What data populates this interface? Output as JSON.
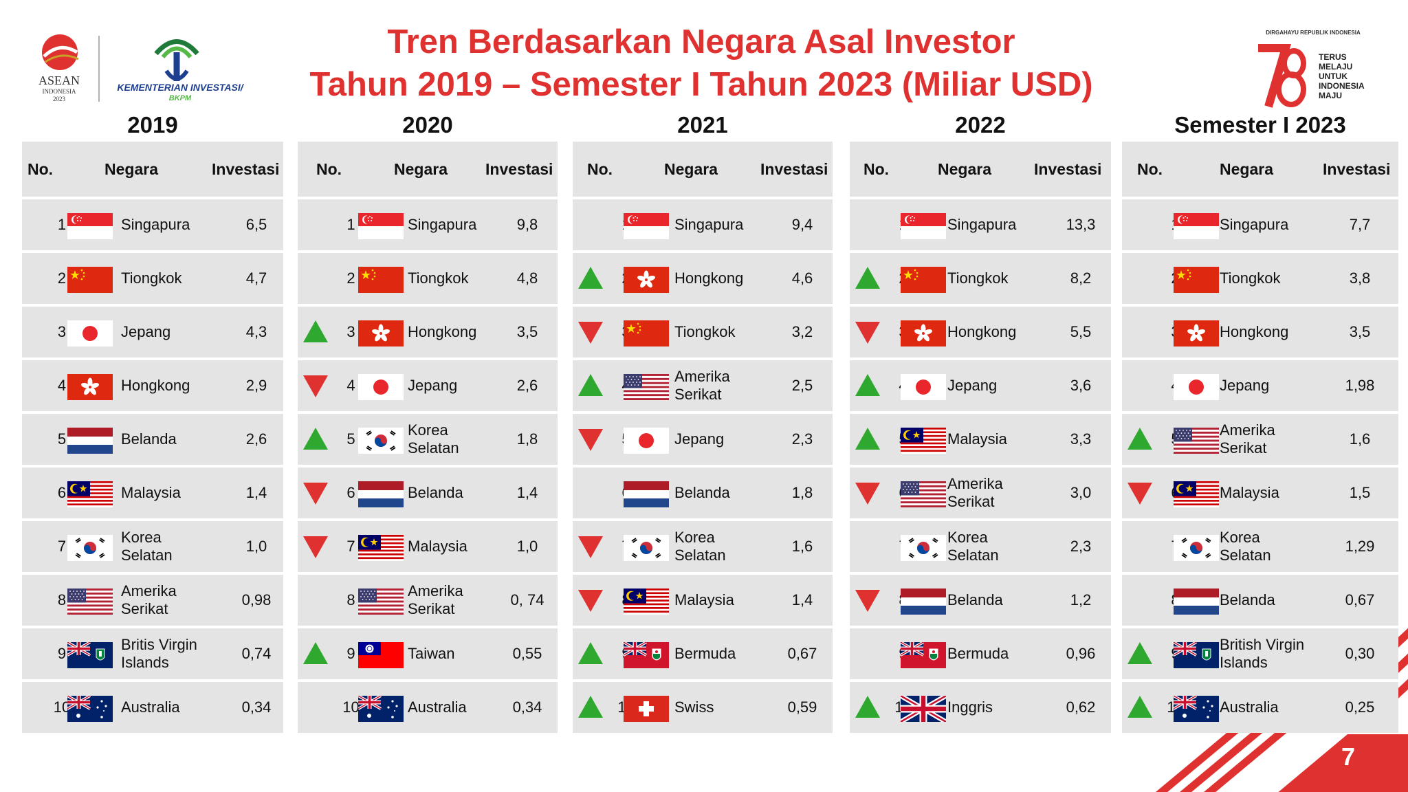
{
  "title": {
    "line1": "Tren Berdasarkan Negara Asal Investor",
    "line2": "Tahun 2019 – Semester I Tahun 2023 (Miliar USD)"
  },
  "logos": {
    "asean_line1": "ASEAN",
    "asean_line2": "INDONESIA",
    "asean_line3": "2023",
    "ministry_line1": "KEMENTERIAN INVESTASI/",
    "ministry_line2": "BKPM",
    "hut_top": "DIRGAHAYU REPUBLIK INDONESIA",
    "hut_line1": "TERUS",
    "hut_line2": "MELAJU",
    "hut_line3": "UNTUK",
    "hut_line4": "INDONESIA",
    "hut_line5": "MAJU"
  },
  "headers": {
    "no": "No.",
    "negara": "Negara",
    "investasi": "Investasi"
  },
  "colors": {
    "title": "#e03131",
    "up": "#2fa82f",
    "down": "#e03131",
    "same": "#1a2fcc",
    "table_bg": "#e4e4e4"
  },
  "page_number": "7",
  "panels": [
    {
      "year": "2019",
      "rows": [
        {
          "no": "1",
          "name": [
            "Singapura"
          ],
          "flag": "singapore",
          "value": "6,5",
          "trend": null
        },
        {
          "no": "2",
          "name": [
            "Tiongkok"
          ],
          "flag": "china",
          "value": "4,7",
          "trend": null
        },
        {
          "no": "3",
          "name": [
            "Jepang"
          ],
          "flag": "japan",
          "value": "4,3",
          "trend": null
        },
        {
          "no": "4",
          "name": [
            "Hongkong"
          ],
          "flag": "hongkong",
          "value": "2,9",
          "trend": null
        },
        {
          "no": "5",
          "name": [
            "Belanda"
          ],
          "flag": "netherlands",
          "value": "2,6",
          "trend": null
        },
        {
          "no": "6",
          "name": [
            "Malaysia"
          ],
          "flag": "malaysia",
          "value": "1,4",
          "trend": null
        },
        {
          "no": "7",
          "name": [
            "Korea",
            "Selatan"
          ],
          "flag": "korea",
          "value": "1,0",
          "trend": null
        },
        {
          "no": "8",
          "name": [
            "Amerika",
            "Serikat"
          ],
          "flag": "usa",
          "value": "0,98",
          "trend": null
        },
        {
          "no": "9",
          "name": [
            "Britis Virgin",
            "Islands"
          ],
          "flag": "bvi",
          "value": "0,74",
          "trend": null
        },
        {
          "no": "10",
          "name": [
            "Australia"
          ],
          "flag": "australia",
          "value": "0,34",
          "trend": null
        }
      ]
    },
    {
      "year": "2020",
      "rows": [
        {
          "no": "1",
          "name": [
            "Singapura"
          ],
          "flag": "singapore",
          "value": "9,8",
          "trend": "same"
        },
        {
          "no": "2",
          "name": [
            "Tiongkok"
          ],
          "flag": "china",
          "value": "4,8",
          "trend": "same"
        },
        {
          "no": "3",
          "name": [
            "Hongkong"
          ],
          "flag": "hongkong",
          "value": "3,5",
          "trend": "up"
        },
        {
          "no": "4",
          "name": [
            "Jepang"
          ],
          "flag": "japan",
          "value": "2,6",
          "trend": "down"
        },
        {
          "no": "5",
          "name": [
            "Korea",
            "Selatan"
          ],
          "flag": "korea",
          "value": "1,8",
          "trend": "up"
        },
        {
          "no": "6",
          "name": [
            "Belanda"
          ],
          "flag": "netherlands",
          "value": "1,4",
          "trend": "down"
        },
        {
          "no": "7",
          "name": [
            "Malaysia"
          ],
          "flag": "malaysia",
          "value": "1,0",
          "trend": "down"
        },
        {
          "no": "8",
          "name": [
            "Amerika",
            "Serikat"
          ],
          "flag": "usa",
          "value": "0, 74",
          "trend": "same"
        },
        {
          "no": "9",
          "name": [
            "Taiwan"
          ],
          "flag": "taiwan",
          "value": "0,55",
          "trend": "up"
        },
        {
          "no": "10",
          "name": [
            "Australia"
          ],
          "flag": "australia",
          "value": "0,34",
          "trend": "same"
        }
      ]
    },
    {
      "year": "2021",
      "rows": [
        {
          "no": "1",
          "name": [
            "Singapura"
          ],
          "flag": "singapore",
          "value": "9,4",
          "trend": "same"
        },
        {
          "no": "2",
          "name": [
            "Hongkong"
          ],
          "flag": "hongkong",
          "value": "4,6",
          "trend": "up"
        },
        {
          "no": "3",
          "name": [
            "Tiongkok"
          ],
          "flag": "china",
          "value": "3,2",
          "trend": "down"
        },
        {
          "no": "4",
          "name": [
            "Amerika",
            "Serikat"
          ],
          "flag": "usa",
          "value": "2,5",
          "trend": "up"
        },
        {
          "no": "5",
          "name": [
            "Jepang"
          ],
          "flag": "japan",
          "value": "2,3",
          "trend": "down"
        },
        {
          "no": "6",
          "name": [
            "Belanda"
          ],
          "flag": "netherlands",
          "value": "1,8",
          "trend": "same"
        },
        {
          "no": "7",
          "name": [
            "Korea",
            "Selatan"
          ],
          "flag": "korea",
          "value": "1,6",
          "trend": "down"
        },
        {
          "no": "8",
          "name": [
            "Malaysia"
          ],
          "flag": "malaysia",
          "value": "1,4",
          "trend": "down"
        },
        {
          "no": "9",
          "name": [
            "Bermuda"
          ],
          "flag": "bermuda",
          "value": "0,67",
          "trend": "up"
        },
        {
          "no": "10",
          "name": [
            "Swiss"
          ],
          "flag": "swiss",
          "value": "0,59",
          "trend": "up"
        }
      ]
    },
    {
      "year": "2022",
      "rows": [
        {
          "no": "1",
          "name": [
            "Singapura"
          ],
          "flag": "singapore",
          "value": "13,3",
          "trend": "same"
        },
        {
          "no": "2",
          "name": [
            "Tiongkok"
          ],
          "flag": "china",
          "value": "8,2",
          "trend": "up"
        },
        {
          "no": "3",
          "name": [
            "Hongkong"
          ],
          "flag": "hongkong",
          "value": "5,5",
          "trend": "down"
        },
        {
          "no": "4",
          "name": [
            "Jepang"
          ],
          "flag": "japan",
          "value": "3,6",
          "trend": "up"
        },
        {
          "no": "5",
          "name": [
            "Malaysia"
          ],
          "flag": "malaysia",
          "value": "3,3",
          "trend": "up"
        },
        {
          "no": "6",
          "name": [
            "Amerika",
            "Serikat"
          ],
          "flag": "usa",
          "value": "3,0",
          "trend": "down"
        },
        {
          "no": "7",
          "name": [
            "Korea",
            "Selatan"
          ],
          "flag": "korea",
          "value": "2,3",
          "trend": "same"
        },
        {
          "no": "8",
          "name": [
            "Belanda"
          ],
          "flag": "netherlands",
          "value": "1,2",
          "trend": "down"
        },
        {
          "no": "9",
          "name": [
            "Bermuda"
          ],
          "flag": "bermuda",
          "value": "0,96",
          "trend": "same"
        },
        {
          "no": "10",
          "name": [
            "Inggris"
          ],
          "flag": "uk",
          "value": "0,62",
          "trend": "up"
        }
      ]
    },
    {
      "year": "Semester I 2023",
      "rows": [
        {
          "no": "1",
          "name": [
            "Singapura"
          ],
          "flag": "singapore",
          "value": "7,7",
          "trend": "same"
        },
        {
          "no": "2",
          "name": [
            "Tiongkok"
          ],
          "flag": "china",
          "value": "3,8",
          "trend": "same"
        },
        {
          "no": "3",
          "name": [
            "Hongkong"
          ],
          "flag": "hongkong",
          "value": "3,5",
          "trend": "same"
        },
        {
          "no": "4",
          "name": [
            "Jepang"
          ],
          "flag": "japan",
          "value": "1,98",
          "trend": "same"
        },
        {
          "no": "5",
          "name": [
            "Amerika",
            "Serikat"
          ],
          "flag": "usa",
          "value": "1,6",
          "trend": "up"
        },
        {
          "no": "6",
          "name": [
            "Malaysia"
          ],
          "flag": "malaysia",
          "value": "1,5",
          "trend": "down"
        },
        {
          "no": "7",
          "name": [
            "Korea",
            "Selatan"
          ],
          "flag": "korea",
          "value": "1,29",
          "trend": "same"
        },
        {
          "no": "8",
          "name": [
            "Belanda"
          ],
          "flag": "netherlands",
          "value": "0,67",
          "trend": "same"
        },
        {
          "no": "9",
          "name": [
            "British Virgin",
            "Islands"
          ],
          "flag": "bvi",
          "value": "0,30",
          "trend": "up"
        },
        {
          "no": "10",
          "name": [
            "Australia"
          ],
          "flag": "australia",
          "value": "0,25",
          "trend": "up"
        }
      ]
    }
  ]
}
